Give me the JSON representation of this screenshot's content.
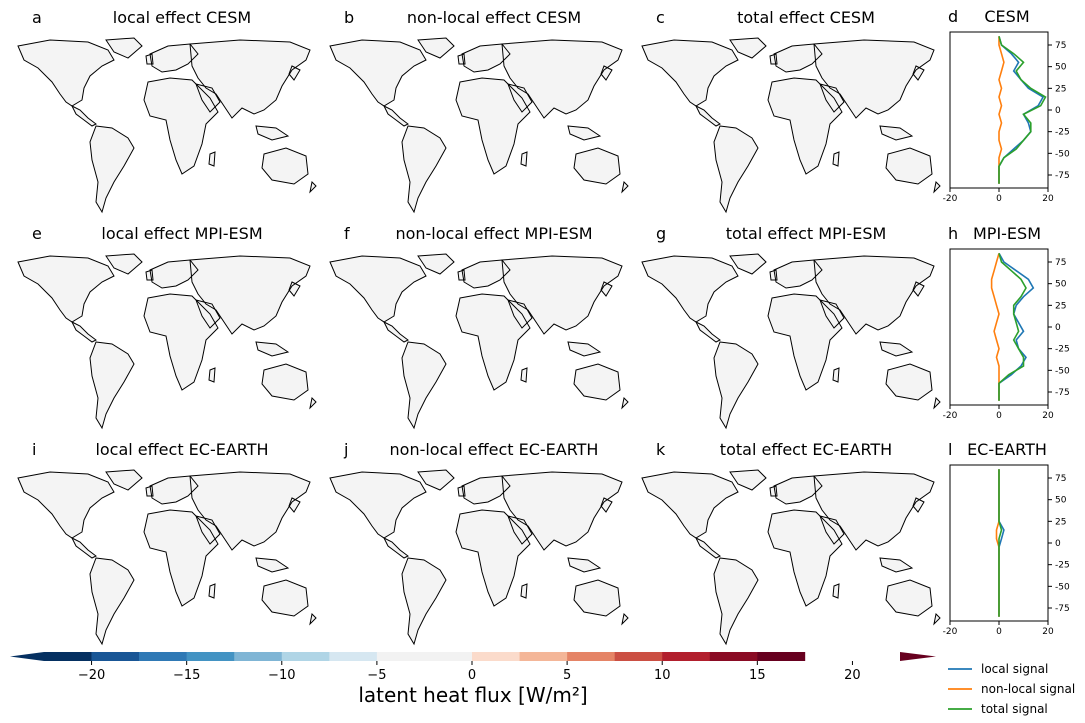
{
  "colors": {
    "local": "#1f77b4",
    "nonlocal": "#ff7f0e",
    "total": "#2ca02c",
    "colormap": [
      "#053061",
      "#195696",
      "#2f79b5",
      "#4393c3",
      "#7fb5d5",
      "#b0d5e6",
      "#d6e7f1",
      "#f2f2f2",
      "#f2f2f2",
      "#fbdbcb",
      "#f4b698",
      "#e58466",
      "#cb4f43",
      "#b21f2d",
      "#8a0b24",
      "#67001f"
    ],
    "land": "#f4f4f4",
    "coast": "#000000"
  },
  "map_panels": [
    {
      "letter": "a",
      "title": "local effect CESM",
      "pattern": "strong_tropics"
    },
    {
      "letter": "b",
      "title": "non-local effect CESM",
      "pattern": "weak_mixed"
    },
    {
      "letter": "c",
      "title": "total effect CESM",
      "pattern": "strong_tropics"
    },
    {
      "letter": "e",
      "title": "local effect MPI-ESM",
      "pattern": "strong_midlat"
    },
    {
      "letter": "f",
      "title": "non-local effect MPI-ESM",
      "pattern": "negative_na"
    },
    {
      "letter": "g",
      "title": "total effect MPI-ESM",
      "pattern": "strong_midlat"
    },
    {
      "letter": "i",
      "title": "local effect EC-EARTH",
      "pattern": "near_zero"
    },
    {
      "letter": "j",
      "title": "non-local effect EC-EARTH",
      "pattern": "near_zero_neg"
    },
    {
      "letter": "k",
      "title": "total effect EC-EARTH",
      "pattern": "near_zero"
    }
  ],
  "profile_panels": [
    {
      "letter": "d",
      "title": "CESM",
      "profile": "cesm"
    },
    {
      "letter": "h",
      "title": "MPI-ESM",
      "profile": "mpi"
    },
    {
      "letter": "l",
      "title": "EC-EARTH",
      "profile": "ec"
    }
  ],
  "profile_axes": {
    "xticks": [
      "-20",
      "0",
      "20"
    ],
    "yticks": [
      "75",
      "50",
      "25",
      "0",
      "-25",
      "-50",
      "-75"
    ],
    "xlim": [
      -20,
      20
    ],
    "ylim": [
      -90,
      90
    ]
  },
  "colorbar": {
    "label": "latent heat flux [W/m²]",
    "ticks": [
      "−20",
      "−15",
      "−10",
      "−5",
      "0",
      "5",
      "10",
      "15",
      "20"
    ],
    "range": [
      -22.5,
      22.5
    ]
  },
  "legend": {
    "items": [
      {
        "label": "local signal",
        "color": "#1f77b4"
      },
      {
        "label": "non-local signal",
        "color": "#ff7f0e"
      },
      {
        "label": "total signal",
        "color": "#2ca02c"
      }
    ]
  },
  "chart_data": {
    "type": "heatmap",
    "title": "",
    "colorbar_label": "latent heat flux [W/m²]",
    "colorbar_ticks": [
      -20,
      -15,
      -10,
      -5,
      0,
      5,
      10,
      15,
      20
    ],
    "panels": [
      "local effect CESM",
      "non-local effect CESM",
      "total effect CESM",
      "local effect MPI-ESM",
      "non-local effect MPI-ESM",
      "total effect MPI-ESM",
      "local effect EC-EARTH",
      "non-local effect EC-EARTH",
      "total effect EC-EARTH"
    ],
    "profiles": [
      {
        "panel": "CESM",
        "xlim": [
          -20,
          20
        ],
        "ylim": [
          -90,
          90
        ],
        "lat": [
          85,
          75,
          65,
          55,
          45,
          35,
          25,
          15,
          5,
          -5,
          -15,
          -25,
          -35,
          -45,
          -55,
          -65,
          -75,
          -85
        ],
        "series": [
          {
            "name": "local signal",
            "values": [
              0,
              1,
              5,
              8,
              6,
              9,
              12,
              18,
              16,
              10,
              12,
              13,
              10,
              6,
              2,
              0,
              0,
              0
            ]
          },
          {
            "name": "non-local signal",
            "values": [
              0,
              0,
              1,
              2,
              1,
              0,
              1,
              0,
              1,
              0,
              1,
              0,
              0,
              1,
              0,
              0,
              0,
              0
            ]
          },
          {
            "name": "total signal",
            "values": [
              0,
              1,
              6,
              10,
              7,
              9,
              13,
              19,
              17,
              10,
              13,
              13,
              10,
              7,
              2,
              0,
              0,
              0
            ]
          }
        ]
      },
      {
        "panel": "MPI-ESM",
        "xlim": [
          -20,
          20
        ],
        "ylim": [
          -90,
          90
        ],
        "lat": [
          85,
          75,
          65,
          55,
          45,
          35,
          25,
          15,
          5,
          -5,
          -15,
          -25,
          -35,
          -45,
          -55,
          -65,
          -75,
          -85
        ],
        "series": [
          {
            "name": "local signal",
            "values": [
              0,
              2,
              7,
              12,
              14,
              10,
              7,
              6,
              8,
              10,
              7,
              8,
              11,
              9,
              5,
              0,
              0,
              0
            ]
          },
          {
            "name": "non-local signal",
            "values": [
              0,
              -1,
              -2,
              -3,
              -3,
              -2,
              -1,
              0,
              -1,
              -2,
              -1,
              0,
              -1,
              0,
              0,
              0,
              0,
              0
            ]
          },
          {
            "name": "total signal",
            "values": [
              0,
              1,
              5,
              9,
              11,
              9,
              6,
              6,
              7,
              8,
              6,
              8,
              10,
              10,
              4,
              0,
              0,
              0
            ]
          }
        ]
      },
      {
        "panel": "EC-EARTH",
        "xlim": [
          -20,
          20
        ],
        "ylim": [
          -90,
          90
        ],
        "lat": [
          85,
          75,
          65,
          55,
          45,
          35,
          25,
          15,
          5,
          -5,
          -15,
          -25,
          -35,
          -45,
          -55,
          -65,
          -75,
          -85
        ],
        "series": [
          {
            "name": "local signal",
            "values": [
              0,
              0,
              0,
              0,
              0,
              0,
              0,
              2,
              1,
              0,
              0,
              0,
              0,
              0,
              0,
              0,
              0,
              0
            ]
          },
          {
            "name": "non-local signal",
            "values": [
              0,
              0,
              0,
              0,
              0,
              0,
              0,
              -1,
              -1,
              0,
              0,
              0,
              0,
              0,
              0,
              0,
              0,
              0
            ]
          },
          {
            "name": "total signal",
            "values": [
              0,
              0,
              0,
              0,
              0,
              0,
              0,
              1,
              0,
              0,
              0,
              0,
              0,
              0,
              0,
              0,
              0,
              0
            ]
          }
        ]
      }
    ]
  }
}
